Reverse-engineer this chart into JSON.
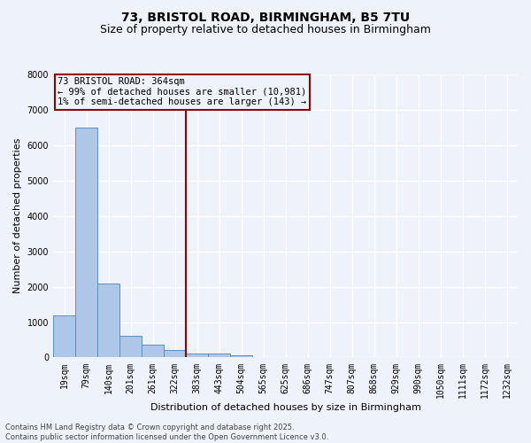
{
  "title_line1": "73, BRISTOL ROAD, BIRMINGHAM, B5 7TU",
  "title_line2": "Size of property relative to detached houses in Birmingham",
  "xlabel": "Distribution of detached houses by size in Birmingham",
  "ylabel": "Number of detached properties",
  "categories": [
    "19sqm",
    "79sqm",
    "140sqm",
    "201sqm",
    "261sqm",
    "322sqm",
    "383sqm",
    "443sqm",
    "504sqm",
    "565sqm",
    "625sqm",
    "686sqm",
    "747sqm",
    "807sqm",
    "868sqm",
    "929sqm",
    "990sqm",
    "1050sqm",
    "1111sqm",
    "1172sqm",
    "1232sqm"
  ],
  "values": [
    1200,
    6500,
    2100,
    600,
    350,
    200,
    100,
    100,
    60,
    0,
    0,
    0,
    0,
    0,
    0,
    0,
    0,
    0,
    0,
    0,
    0
  ],
  "bar_color": "#aec6e8",
  "bar_edge_color": "#5a8fc2",
  "vline_x_index": 6,
  "vline_color": "#8b0000",
  "annotation_text": "73 BRISTOL ROAD: 364sqm\n← 99% of detached houses are smaller (10,981)\n1% of semi-detached houses are larger (143) →",
  "annotation_box_color": "#8b0000",
  "ylim": [
    0,
    8000
  ],
  "yticks": [
    0,
    1000,
    2000,
    3000,
    4000,
    5000,
    6000,
    7000,
    8000
  ],
  "background_color": "#eef2fa",
  "plot_bg_color": "#eef2fa",
  "grid_color": "#ffffff",
  "footer_text": "Contains HM Land Registry data © Crown copyright and database right 2025.\nContains public sector information licensed under the Open Government Licence v3.0.",
  "title_fontsize": 10,
  "subtitle_fontsize": 9,
  "axis_label_fontsize": 8,
  "tick_fontsize": 7,
  "annotation_fontsize": 7.5,
  "footer_fontsize": 6
}
